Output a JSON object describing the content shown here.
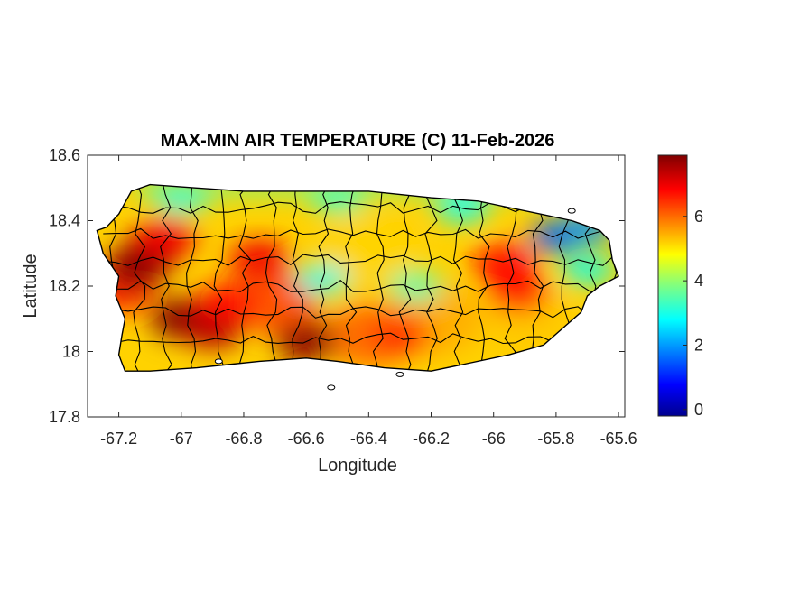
{
  "chart_data": {
    "type": "heatmap",
    "title": "MAX-MIN AIR TEMPERATURE (C) 11-Feb-2026",
    "xlabel": "Longitude",
    "ylabel": "Latitude",
    "xlim": [
      -67.3,
      -65.58
    ],
    "ylim": [
      17.8,
      18.6
    ],
    "x_ticks": [
      {
        "value": -67.2,
        "label": "-67.2"
      },
      {
        "value": -67.0,
        "label": "-67"
      },
      {
        "value": -66.8,
        "label": "-66.8"
      },
      {
        "value": -66.6,
        "label": "-66.6"
      },
      {
        "value": -66.4,
        "label": "-66.4"
      },
      {
        "value": -66.2,
        "label": "-66.2"
      },
      {
        "value": -66.0,
        "label": "-66"
      },
      {
        "value": -65.8,
        "label": "-65.8"
      },
      {
        "value": -65.6,
        "label": "-65.6"
      }
    ],
    "y_ticks": [
      {
        "value": 18.6,
        "label": "18.6"
      },
      {
        "value": 18.4,
        "label": "18.4"
      },
      {
        "value": 18.2,
        "label": "18.2"
      },
      {
        "value": 18.0,
        "label": "18"
      },
      {
        "value": 17.8,
        "label": "17.8"
      }
    ],
    "colorbar": {
      "colormap": "jet",
      "range": [
        -0.2,
        7.9
      ],
      "ticks": [
        {
          "value": 0,
          "label": "0"
        },
        {
          "value": 2,
          "label": "2"
        },
        {
          "value": 4,
          "label": "4"
        },
        {
          "value": 6,
          "label": "6"
        }
      ]
    },
    "grid": false,
    "region": "Puerto Rico",
    "island_outline": [
      [
        -67.27,
        18.37
      ],
      [
        -67.24,
        18.38
      ],
      [
        -67.2,
        18.42
      ],
      [
        -67.16,
        18.49
      ],
      [
        -67.1,
        18.51
      ],
      [
        -66.95,
        18.5
      ],
      [
        -66.8,
        18.49
      ],
      [
        -66.6,
        18.49
      ],
      [
        -66.4,
        18.49
      ],
      [
        -66.2,
        18.47
      ],
      [
        -66.05,
        18.46
      ],
      [
        -65.95,
        18.44
      ],
      [
        -65.85,
        18.42
      ],
      [
        -65.75,
        18.4
      ],
      [
        -65.66,
        18.37
      ],
      [
        -65.63,
        18.34
      ],
      [
        -65.62,
        18.28
      ],
      [
        -65.6,
        18.23
      ],
      [
        -65.66,
        18.2
      ],
      [
        -65.7,
        18.17
      ],
      [
        -65.72,
        18.12
      ],
      [
        -65.78,
        18.07
      ],
      [
        -65.84,
        18.02
      ],
      [
        -65.95,
        17.99
      ],
      [
        -66.1,
        17.96
      ],
      [
        -66.2,
        17.94
      ],
      [
        -66.35,
        17.95
      ],
      [
        -66.5,
        17.97
      ],
      [
        -66.6,
        17.98
      ],
      [
        -66.75,
        17.97
      ],
      [
        -66.85,
        17.96
      ],
      [
        -66.95,
        17.95
      ],
      [
        -67.1,
        17.94
      ],
      [
        -67.18,
        17.94
      ],
      [
        -67.2,
        17.99
      ],
      [
        -67.19,
        18.05
      ],
      [
        -67.18,
        18.1
      ],
      [
        -67.21,
        18.17
      ],
      [
        -67.2,
        18.23
      ],
      [
        -67.25,
        18.3
      ],
      [
        -67.27,
        18.37
      ]
    ],
    "hotspots": [
      {
        "lon": -67.1,
        "lat": 18.3,
        "value": 7.8
      },
      {
        "lon": -67.15,
        "lat": 18.25,
        "value": 7.8
      },
      {
        "lon": -67.0,
        "lat": 18.1,
        "value": 7.9
      },
      {
        "lon": -66.9,
        "lat": 18.07,
        "value": 7.5
      },
      {
        "lon": -66.6,
        "lat": 18.03,
        "value": 7.8
      },
      {
        "lon": -66.75,
        "lat": 18.28,
        "value": 7.0
      },
      {
        "lon": -67.05,
        "lat": 18.35,
        "value": 7.0
      },
      {
        "lon": -65.97,
        "lat": 18.27,
        "value": 6.8
      },
      {
        "lon": -65.92,
        "lat": 18.18,
        "value": 6.8
      },
      {
        "lon": -66.3,
        "lat": 18.05,
        "value": 6.5
      },
      {
        "lon": -66.85,
        "lat": 18.15,
        "value": 6.8
      }
    ],
    "coldspots": [
      {
        "lon": -65.8,
        "lat": 18.35,
        "value": 1.5
      },
      {
        "lon": -65.7,
        "lat": 18.38,
        "value": 2.0
      },
      {
        "lon": -66.1,
        "lat": 18.44,
        "value": 3.0
      },
      {
        "lon": -66.5,
        "lat": 18.47,
        "value": 3.2
      },
      {
        "lon": -67.0,
        "lat": 18.47,
        "value": 3.0
      },
      {
        "lon": -66.55,
        "lat": 18.22,
        "value": 3.0
      },
      {
        "lon": -65.7,
        "lat": 18.25,
        "value": 3.0
      },
      {
        "lon": -66.25,
        "lat": 18.2,
        "value": 3.5
      }
    ],
    "islets": [
      {
        "lon": -66.52,
        "lat": 17.89
      },
      {
        "lon": -66.88,
        "lat": 17.97
      },
      {
        "lon": -66.3,
        "lat": 17.93
      },
      {
        "lon": -65.75,
        "lat": 18.43
      }
    ]
  }
}
